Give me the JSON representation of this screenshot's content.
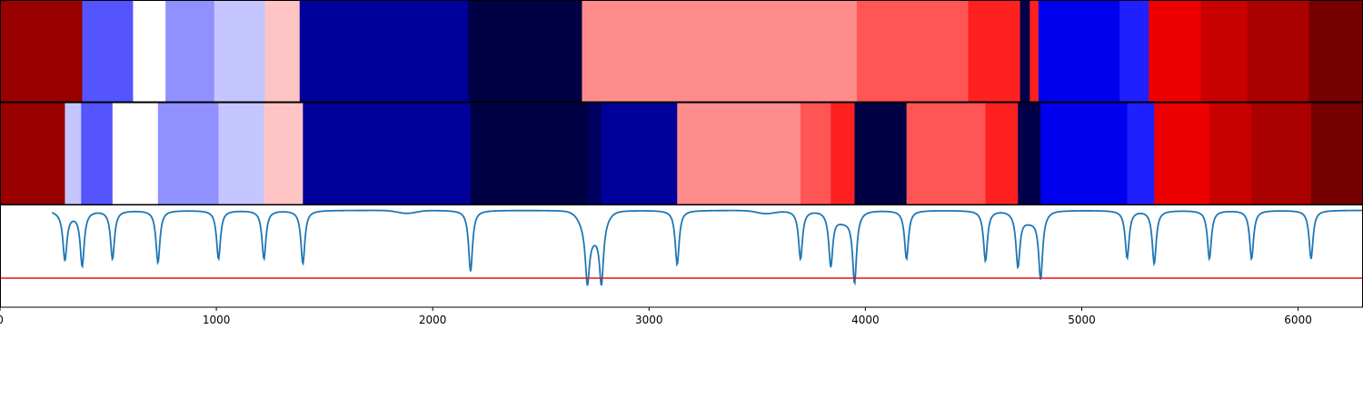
{
  "chart_data": [
    {
      "type": "heatmap",
      "panel": "segmentation-track-1",
      "colormap": "seismic",
      "xlim": [
        0,
        6300
      ],
      "boundaries": [
        0,
        380,
        615,
        765,
        990,
        1225,
        1385,
        2165,
        2690,
        3960,
        4475,
        4715,
        4760,
        4800,
        5175,
        5310,
        5550,
        5765,
        6050,
        6300
      ],
      "colors": [
        "#990000",
        "#5555ff",
        "#ffffff",
        "#9090ff",
        "#c5c5ff",
        "#ffc5c5",
        "#00009a",
        "#000045",
        "#ff8c8c",
        "#ff5555",
        "#ff2020",
        "#00004a",
        "#ff2020",
        "#0000ee",
        "#2020ff",
        "#ee0000",
        "#c80000",
        "#aa0000",
        "#770000"
      ]
    },
    {
      "type": "heatmap",
      "panel": "segmentation-track-2",
      "colormap": "seismic",
      "xlim": [
        0,
        6300
      ],
      "boundaries": [
        0,
        300,
        375,
        520,
        730,
        1010,
        1220,
        1400,
        2175,
        2715,
        2780,
        3130,
        3700,
        3840,
        3950,
        4190,
        4555,
        4705,
        4810,
        5210,
        5335,
        5590,
        5785,
        6060,
        6300
      ],
      "colors": [
        "#990000",
        "#c5c5ff",
        "#5555ff",
        "#ffffff",
        "#9090ff",
        "#c5c5ff",
        "#ffc5c5",
        "#00009a",
        "#000045",
        "#000060",
        "#00009a",
        "#ff8c8c",
        "#ff5555",
        "#ff2020",
        "#000045",
        "#ff5555",
        "#ff2020",
        "#00004a",
        "#0000ee",
        "#2020ff",
        "#ee0000",
        "#c80000",
        "#aa0000",
        "#770000"
      ]
    },
    {
      "type": "line",
      "panel": "boundary-score-signal",
      "xlim": [
        0,
        6300
      ],
      "ylim": [
        -1.0,
        0.05
      ],
      "x_ticks": [
        0,
        1000,
        2000,
        3000,
        4000,
        5000,
        6000
      ],
      "x_tick_labels": [
        "0",
        "1000",
        "2000",
        "3000",
        "4000",
        "5000",
        "6000"
      ],
      "line_color": "#1f77b4",
      "threshold": {
        "value": -0.7,
        "color": "#e8141b"
      },
      "baseline": 0,
      "dips": [
        {
          "x": 300,
          "depth": 0.48
        },
        {
          "x": 380,
          "depth": 0.55
        },
        {
          "x": 520,
          "depth": 0.5
        },
        {
          "x": 730,
          "depth": 0.54
        },
        {
          "x": 1010,
          "depth": 0.5
        },
        {
          "x": 1220,
          "depth": 0.5
        },
        {
          "x": 1400,
          "depth": 0.55
        },
        {
          "x": 2175,
          "depth": 0.63
        },
        {
          "x": 2715,
          "depth": 0.55
        },
        {
          "x": 2780,
          "depth": 0.6
        },
        {
          "x": 3130,
          "depth": 0.56
        },
        {
          "x": 3700,
          "depth": 0.5
        },
        {
          "x": 3840,
          "depth": 0.54
        },
        {
          "x": 3950,
          "depth": 0.7
        },
        {
          "x": 4190,
          "depth": 0.5
        },
        {
          "x": 4555,
          "depth": 0.52
        },
        {
          "x": 4705,
          "depth": 0.54
        },
        {
          "x": 4810,
          "depth": 0.66
        },
        {
          "x": 5210,
          "depth": 0.49
        },
        {
          "x": 5335,
          "depth": 0.55
        },
        {
          "x": 5590,
          "depth": 0.5
        },
        {
          "x": 5785,
          "depth": 0.5
        },
        {
          "x": 6060,
          "depth": 0.5
        }
      ],
      "humps": [
        {
          "x": 330,
          "height": -0.04
        },
        {
          "x": 1880,
          "height": -0.03
        },
        {
          "x": 2740,
          "height": -0.25
        },
        {
          "x": 3540,
          "height": -0.03
        },
        {
          "x": 3900,
          "height": -0.1
        },
        {
          "x": 4760,
          "height": -0.1
        }
      ]
    }
  ]
}
